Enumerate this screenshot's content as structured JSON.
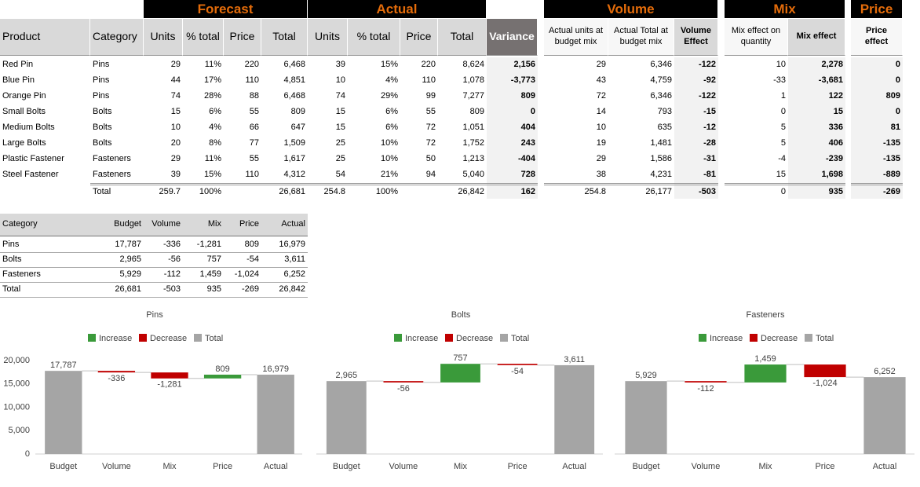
{
  "main_table": {
    "groups": [
      "Forecast",
      "Actual",
      "Volume",
      "Mix",
      "Price"
    ],
    "header": [
      "Product",
      "Category",
      "Units",
      "% total",
      "Price",
      "Total",
      "Units",
      "% total",
      "Price",
      "Total",
      "Variance",
      "Actual units at budget mix",
      "Actual Total at budget mix",
      "Volume Effect",
      "Mix effect on quantity",
      "Mix effect",
      "Price effect"
    ],
    "rows": [
      [
        "Red Pin",
        "Pins",
        "29",
        "11%",
        "220",
        "6,468",
        "39",
        "15%",
        "220",
        "8,624",
        "2,156",
        "29",
        "6,346",
        "-122",
        "10",
        "2,278",
        "0"
      ],
      [
        "Blue Pin",
        "Pins",
        "44",
        "17%",
        "110",
        "4,851",
        "10",
        "4%",
        "110",
        "1,078",
        "-3,773",
        "43",
        "4,759",
        "-92",
        "-33",
        "-3,681",
        "0"
      ],
      [
        "Orange Pin",
        "Pins",
        "74",
        "28%",
        "88",
        "6,468",
        "74",
        "29%",
        "99",
        "7,277",
        "809",
        "72",
        "6,346",
        "-122",
        "1",
        "122",
        "809"
      ],
      [
        "Small Bolts",
        "Bolts",
        "15",
        "6%",
        "55",
        "809",
        "15",
        "6%",
        "55",
        "809",
        "0",
        "14",
        "793",
        "-15",
        "0",
        "15",
        "0"
      ],
      [
        "Medium Bolts",
        "Bolts",
        "10",
        "4%",
        "66",
        "647",
        "15",
        "6%",
        "72",
        "1,051",
        "404",
        "10",
        "635",
        "-12",
        "5",
        "336",
        "81"
      ],
      [
        "Large Bolts",
        "Bolts",
        "20",
        "8%",
        "77",
        "1,509",
        "25",
        "10%",
        "72",
        "1,752",
        "243",
        "19",
        "1,481",
        "-28",
        "5",
        "406",
        "-135"
      ],
      [
        "Plastic Fastener",
        "Fasteners",
        "29",
        "11%",
        "55",
        "1,617",
        "25",
        "10%",
        "50",
        "1,213",
        "-404",
        "29",
        "1,586",
        "-31",
        "-4",
        "-239",
        "-135"
      ],
      [
        "Steel Fastener",
        "Fasteners",
        "39",
        "15%",
        "110",
        "4,312",
        "54",
        "21%",
        "94",
        "5,040",
        "728",
        "38",
        "4,231",
        "-81",
        "15",
        "1,698",
        "-889"
      ],
      [
        null,
        "Total",
        "259.7",
        "100%",
        null,
        "26,681",
        "254.8",
        "100%",
        null,
        "26,842",
        "162",
        "254.8",
        "26,177",
        "-503",
        "0",
        "935",
        "-269"
      ]
    ]
  },
  "summary_table": {
    "header": [
      "Category",
      "Budget",
      "Volume",
      "Mix",
      "Price",
      "Actual"
    ],
    "rows": [
      [
        "Pins",
        "17,787",
        "-336",
        "-1,281",
        "809",
        "16,979"
      ],
      [
        "Bolts",
        "2,965",
        "-56",
        "757",
        "-54",
        "3,611"
      ],
      [
        "Fasteners",
        "5,929",
        "-112",
        "1,459",
        "-1,024",
        "6,252"
      ],
      [
        "Total",
        "26,681",
        "-503",
        "935",
        "-269",
        "26,842"
      ]
    ]
  },
  "chart_data": [
    {
      "type": "waterfall",
      "title": "Pins",
      "categories": [
        "Budget",
        "Volume",
        "Mix",
        "Price",
        "Actual"
      ],
      "values": [
        17787,
        -336,
        -1281,
        809,
        16979
      ],
      "value_labels": [
        "17,787",
        "-336",
        "-1,281",
        "809",
        "16,979"
      ],
      "legend": [
        {
          "name": "Increase",
          "color": "#3a9a3a"
        },
        {
          "name": "Decrease",
          "color": "#c00000"
        },
        {
          "name": "Total",
          "color": "#a5a5a5"
        }
      ],
      "ylim": [
        0,
        20000
      ],
      "yticks": [
        0,
        {
          "value": 5000,
          "label": "5,000"
        },
        {
          "value": 10000,
          "label": "10,000"
        },
        {
          "value": 15000,
          "label": "15,000"
        },
        {
          "value": 20000,
          "label": "20,000"
        }
      ]
    },
    {
      "type": "waterfall",
      "title": "Bolts",
      "categories": [
        "Budget",
        "Volume",
        "Mix",
        "Price",
        "Actual"
      ],
      "values": [
        2965,
        -56,
        757,
        -54,
        3611
      ],
      "value_labels": [
        "2,965",
        "-56",
        "757",
        "-54",
        "3,611"
      ],
      "legend": [
        {
          "name": "Increase",
          "color": "#3a9a3a"
        },
        {
          "name": "Decrease",
          "color": "#c00000"
        },
        {
          "name": "Total",
          "color": "#a5a5a5"
        }
      ],
      "ylim": [
        0,
        3800
      ]
    },
    {
      "type": "waterfall",
      "title": "Fasteners",
      "categories": [
        "Budget",
        "Volume",
        "Mix",
        "Price",
        "Actual"
      ],
      "values": [
        5929,
        -112,
        1459,
        -1024,
        6252
      ],
      "value_labels": [
        "5,929",
        "-112",
        "1,459",
        "-1,024",
        "6,252"
      ],
      "legend": [
        {
          "name": "Increase",
          "color": "#3a9a3a"
        },
        {
          "name": "Decrease",
          "color": "#c00000"
        },
        {
          "name": "Total",
          "color": "#a5a5a5"
        }
      ],
      "ylim": [
        0,
        7600
      ]
    }
  ]
}
